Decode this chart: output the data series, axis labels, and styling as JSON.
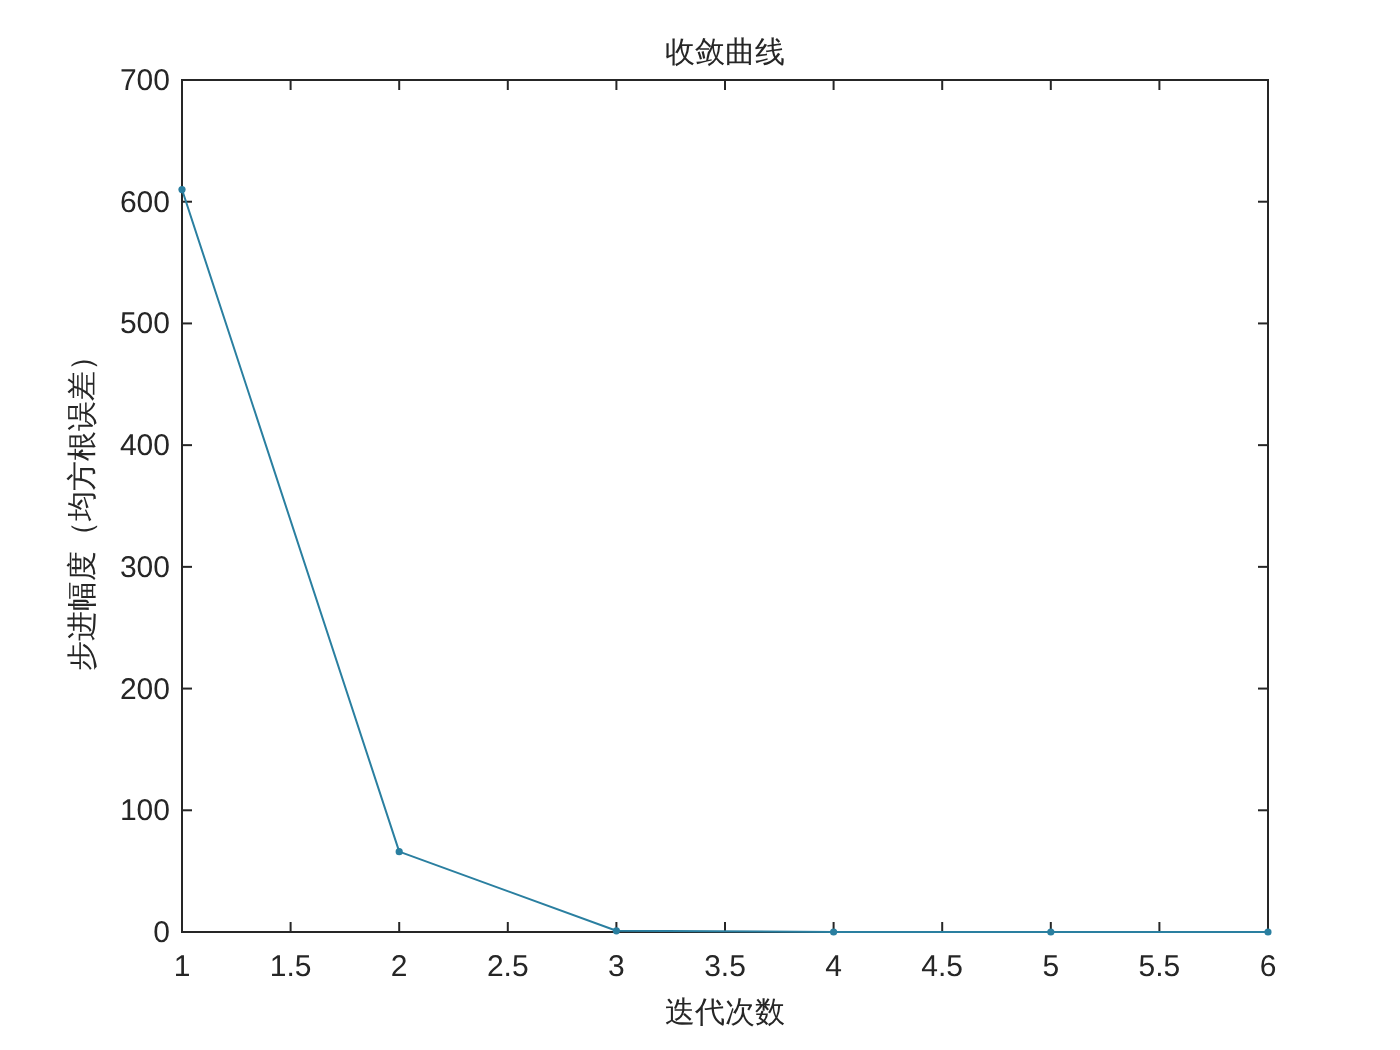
{
  "chart_data": {
    "type": "line",
    "title": "收敛曲线",
    "xlabel": "迭代次数",
    "ylabel": "步进幅度（均方根误差）",
    "x": [
      1,
      2,
      3,
      4,
      5,
      6
    ],
    "series": [
      {
        "color": "#2a7fa0",
        "values": [
          610,
          66,
          1,
          0,
          0,
          0
        ]
      }
    ],
    "xlim": [
      1,
      6
    ],
    "xticks": [
      1,
      1.5,
      2,
      2.5,
      3,
      3.5,
      4,
      4.5,
      5,
      5.5,
      6
    ],
    "ylim": [
      0,
      700
    ],
    "yticks": [
      0,
      100,
      200,
      300,
      400,
      500,
      600,
      700
    ],
    "marker": "circle",
    "line_style": "solid",
    "grid": false
  }
}
